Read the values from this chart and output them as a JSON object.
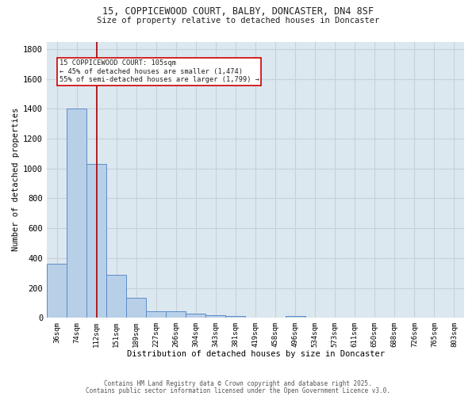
{
  "title_line1": "15, COPPICEWOOD COURT, BALBY, DONCASTER, DN4 8SF",
  "title_line2": "Size of property relative to detached houses in Doncaster",
  "xlabel": "Distribution of detached houses by size in Doncaster",
  "ylabel": "Number of detached properties",
  "bin_labels": [
    "36sqm",
    "74sqm",
    "112sqm",
    "151sqm",
    "189sqm",
    "227sqm",
    "266sqm",
    "304sqm",
    "343sqm",
    "381sqm",
    "419sqm",
    "458sqm",
    "496sqm",
    "534sqm",
    "573sqm",
    "611sqm",
    "650sqm",
    "688sqm",
    "726sqm",
    "765sqm",
    "803sqm"
  ],
  "bar_values": [
    360,
    1400,
    1030,
    290,
    135,
    43,
    43,
    30,
    18,
    14,
    0,
    0,
    12,
    0,
    0,
    0,
    0,
    0,
    0,
    0,
    0
  ],
  "bar_color": "#b8cfe8",
  "bar_edgecolor": "#5b8cc8",
  "property_line_x": 2.0,
  "property_sqm": 105,
  "annotation_text": "15 COPPICEWOOD COURT: 105sqm\n← 45% of detached houses are smaller (1,474)\n55% of semi-detached houses are larger (1,799) →",
  "annotation_box_color": "#ffffff",
  "annotation_box_edgecolor": "#cc0000",
  "red_line_color": "#aa0000",
  "ylim": [
    0,
    1850
  ],
  "yticks": [
    0,
    200,
    400,
    600,
    800,
    1000,
    1200,
    1400,
    1600,
    1800
  ],
  "grid_color": "#c8d0d8",
  "background_color": "#dce8f0",
  "fig_background": "#ffffff",
  "footer_line1": "Contains HM Land Registry data © Crown copyright and database right 2025.",
  "footer_line2": "Contains public sector information licensed under the Open Government Licence v3.0.",
  "font_color": "#222222"
}
